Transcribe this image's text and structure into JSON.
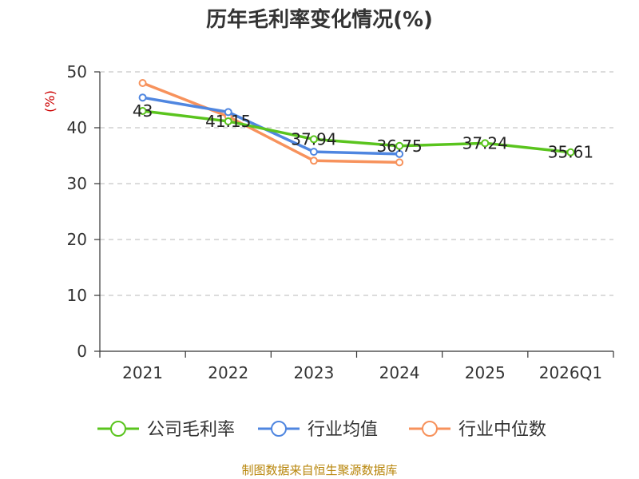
{
  "chart_data": {
    "type": "line",
    "title": "历年毛利率变化情况(%)",
    "ylabel": "(%)",
    "xlabel": "",
    "categories": [
      "2021",
      "2022",
      "2023",
      "2024",
      "2025",
      "2026Q1"
    ],
    "ylim": [
      0,
      50
    ],
    "yticks": [
      0,
      10,
      20,
      30,
      40,
      50
    ],
    "grid": true,
    "legend_position": "bottom",
    "series": [
      {
        "name": "公司毛利率",
        "color": "#5ac41e",
        "values": [
          43,
          41.15,
          37.94,
          36.75,
          37.24,
          35.61
        ],
        "labels": [
          "43",
          "41.15",
          "37.94",
          "36.75",
          "37.24",
          "35.61"
        ]
      },
      {
        "name": "行业均值",
        "color": "#4f86e0",
        "values": [
          45.4,
          42.8,
          35.7,
          35.3,
          null,
          null
        ]
      },
      {
        "name": "行业中位数",
        "color": "#f7925c",
        "values": [
          48.0,
          42.0,
          34.1,
          33.8,
          null,
          null
        ]
      }
    ]
  },
  "source": "制图数据来自恒生聚源数据库"
}
